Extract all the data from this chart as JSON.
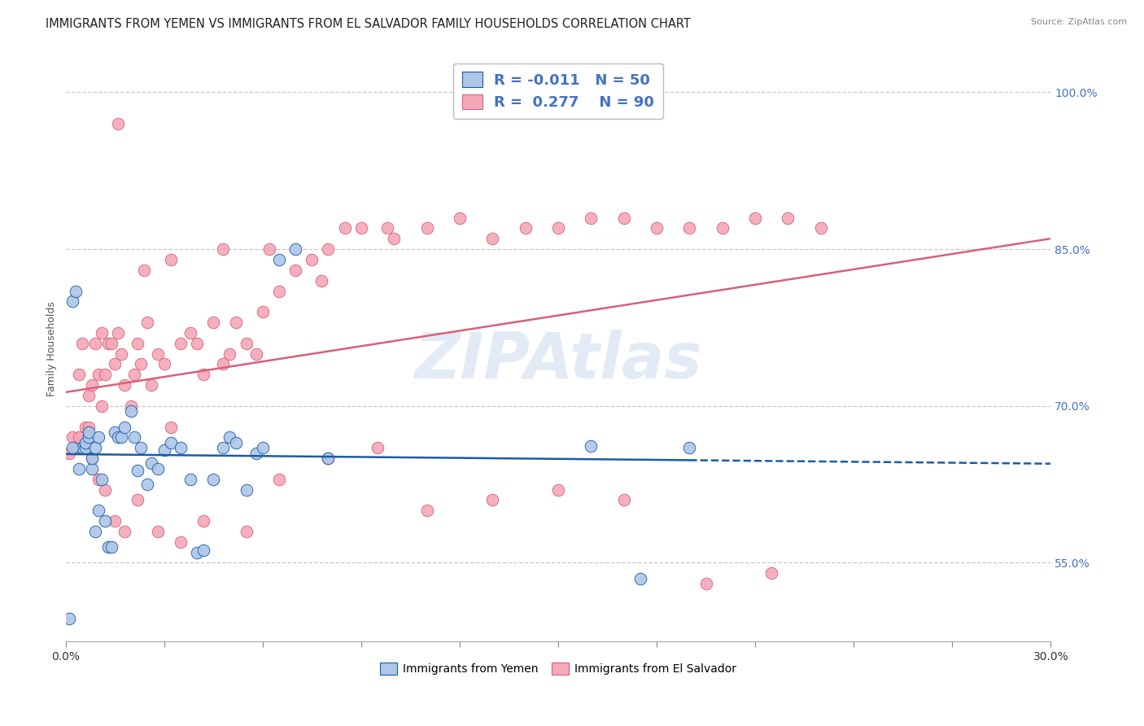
{
  "title": "IMMIGRANTS FROM YEMEN VS IMMIGRANTS FROM EL SALVADOR FAMILY HOUSEHOLDS CORRELATION CHART",
  "source": "Source: ZipAtlas.com",
  "ylabel": "Family Households",
  "ytick_vals": [
    0.55,
    0.7,
    0.85,
    1.0
  ],
  "ytick_labels": [
    "55.0%",
    "70.0%",
    "85.0%",
    "100.0%"
  ],
  "legend_r_yemen": "-0.011",
  "legend_n_yemen": "50",
  "legend_r_salvador": "0.277",
  "legend_n_salvador": "90",
  "yemen_color": "#aec6e8",
  "salvador_color": "#f4a8b8",
  "yemen_line_color": "#1a5ca8",
  "salvador_line_color": "#d9607a",
  "watermark": "ZIPAtlas",
  "yemen_x": [
    0.001,
    0.002,
    0.003,
    0.004,
    0.005,
    0.006,
    0.006,
    0.007,
    0.007,
    0.008,
    0.008,
    0.009,
    0.009,
    0.01,
    0.01,
    0.011,
    0.012,
    0.013,
    0.014,
    0.015,
    0.016,
    0.017,
    0.018,
    0.02,
    0.021,
    0.022,
    0.023,
    0.025,
    0.026,
    0.028,
    0.03,
    0.032,
    0.035,
    0.038,
    0.04,
    0.042,
    0.045,
    0.048,
    0.05,
    0.052,
    0.055,
    0.058,
    0.06,
    0.065,
    0.07,
    0.08,
    0.16,
    0.175,
    0.19,
    0.002
  ],
  "yemen_y": [
    0.497,
    0.8,
    0.81,
    0.64,
    0.66,
    0.66,
    0.665,
    0.67,
    0.675,
    0.64,
    0.65,
    0.66,
    0.58,
    0.6,
    0.67,
    0.63,
    0.59,
    0.565,
    0.565,
    0.675,
    0.67,
    0.67,
    0.68,
    0.695,
    0.67,
    0.638,
    0.66,
    0.625,
    0.645,
    0.64,
    0.658,
    0.665,
    0.66,
    0.63,
    0.56,
    0.562,
    0.63,
    0.66,
    0.67,
    0.665,
    0.62,
    0.655,
    0.66,
    0.84,
    0.85,
    0.65,
    0.662,
    0.535,
    0.66,
    0.66
  ],
  "salvador_x": [
    0.001,
    0.002,
    0.003,
    0.004,
    0.005,
    0.005,
    0.006,
    0.007,
    0.008,
    0.009,
    0.01,
    0.011,
    0.012,
    0.013,
    0.014,
    0.015,
    0.016,
    0.017,
    0.018,
    0.02,
    0.021,
    0.022,
    0.023,
    0.025,
    0.026,
    0.028,
    0.03,
    0.032,
    0.035,
    0.038,
    0.04,
    0.042,
    0.045,
    0.048,
    0.05,
    0.052,
    0.055,
    0.058,
    0.06,
    0.065,
    0.07,
    0.075,
    0.08,
    0.085,
    0.09,
    0.1,
    0.11,
    0.12,
    0.13,
    0.14,
    0.15,
    0.16,
    0.17,
    0.18,
    0.19,
    0.2,
    0.21,
    0.22,
    0.23,
    0.005,
    0.008,
    0.01,
    0.012,
    0.015,
    0.018,
    0.022,
    0.028,
    0.035,
    0.042,
    0.055,
    0.065,
    0.08,
    0.095,
    0.11,
    0.13,
    0.15,
    0.17,
    0.195,
    0.215,
    0.004,
    0.007,
    0.011,
    0.016,
    0.024,
    0.032,
    0.048,
    0.062,
    0.078,
    0.098
  ],
  "salvador_y": [
    0.655,
    0.67,
    0.66,
    0.73,
    0.67,
    0.76,
    0.68,
    0.71,
    0.72,
    0.76,
    0.73,
    0.77,
    0.73,
    0.76,
    0.76,
    0.74,
    0.77,
    0.75,
    0.72,
    0.7,
    0.73,
    0.76,
    0.74,
    0.78,
    0.72,
    0.75,
    0.74,
    0.68,
    0.76,
    0.77,
    0.76,
    0.73,
    0.78,
    0.74,
    0.75,
    0.78,
    0.76,
    0.75,
    0.79,
    0.81,
    0.83,
    0.84,
    0.85,
    0.87,
    0.87,
    0.86,
    0.87,
    0.88,
    0.86,
    0.87,
    0.87,
    0.88,
    0.88,
    0.87,
    0.87,
    0.87,
    0.88,
    0.88,
    0.87,
    0.66,
    0.65,
    0.63,
    0.62,
    0.59,
    0.58,
    0.61,
    0.58,
    0.57,
    0.59,
    0.58,
    0.63,
    0.65,
    0.66,
    0.6,
    0.61,
    0.62,
    0.61,
    0.53,
    0.54,
    0.67,
    0.68,
    0.7,
    0.97,
    0.83,
    0.84,
    0.85,
    0.85,
    0.82,
    0.87
  ],
  "xmin": 0.0,
  "xmax": 0.3,
  "ymin": 0.475,
  "ymax": 1.035,
  "background_color": "#ffffff",
  "grid_color": "#c8c8c8",
  "title_fontsize": 10.5,
  "axis_label_fontsize": 9,
  "tick_fontsize": 10,
  "right_tick_color": "#4472c4"
}
